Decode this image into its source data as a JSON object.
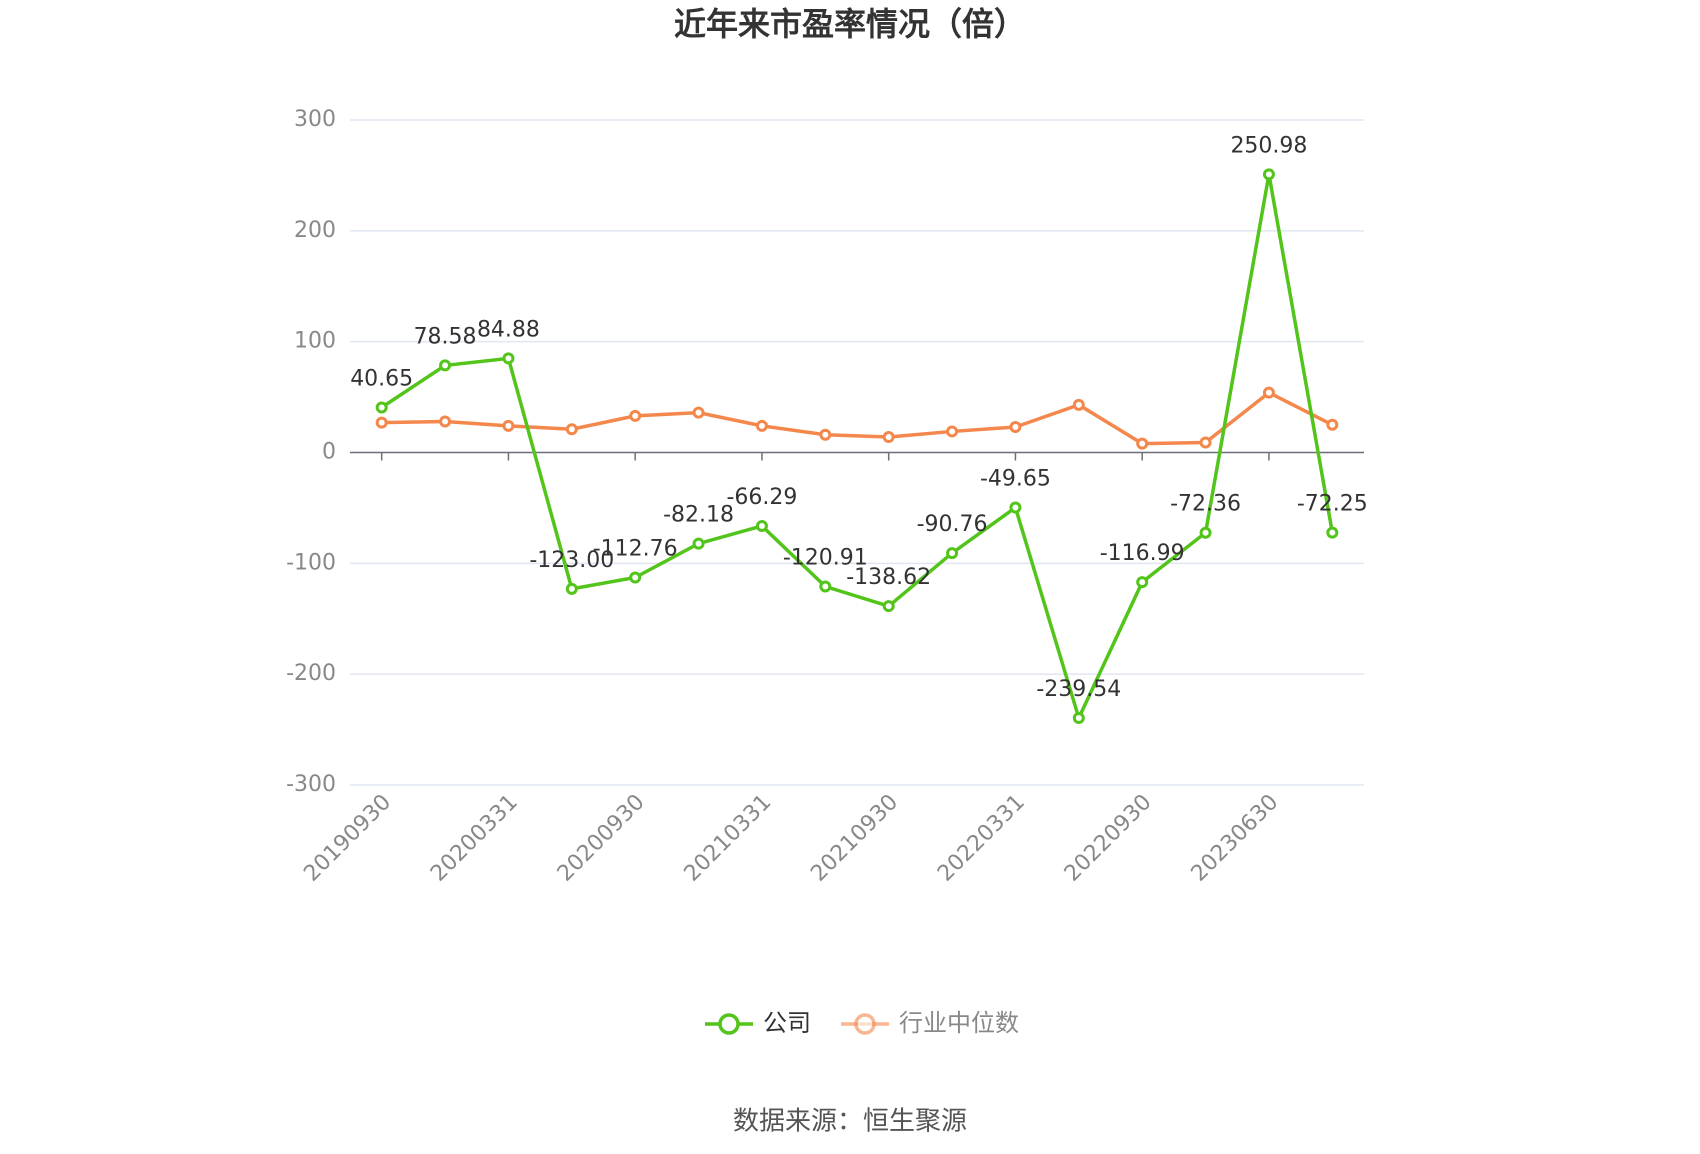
{
  "chart_data": {
    "type": "line",
    "title": "近年来市盈率情况（倍）",
    "categories": [
      "20190930",
      null,
      "20200331",
      null,
      "20200930",
      null,
      "20210331",
      null,
      "20210930",
      null,
      "20220331",
      null,
      "20220930",
      null,
      "20230630",
      null
    ],
    "series": [
      {
        "name": "公司",
        "color": "#52c41a",
        "values": [
          40.65,
          78.58,
          84.88,
          -123.0,
          -112.76,
          -82.18,
          -66.29,
          -120.91,
          -138.62,
          -90.76,
          -49.65,
          -239.54,
          -116.99,
          -72.36,
          250.98,
          -72.25
        ],
        "value_labels": [
          "40.65",
          "78.58",
          "84.88",
          "-123.00",
          "-112.76",
          "-82.18",
          "-66.29",
          "-120.91",
          "-138.62",
          "-90.76",
          "-49.65",
          "-239.54",
          "-116.99",
          "-72.36",
          "250.98",
          "-72.25"
        ]
      },
      {
        "name": "行业中位数",
        "color": "#f4874b",
        "values": [
          27,
          28,
          24,
          21,
          33,
          36,
          24,
          16,
          14,
          19,
          23,
          43,
          8,
          9,
          54,
          25
        ]
      }
    ],
    "ylim": [
      -300,
      300
    ],
    "yticks": [
      -300,
      -200,
      -100,
      0,
      100,
      200,
      300
    ],
    "grid": true,
    "source": "数据来源：恒生聚源"
  }
}
